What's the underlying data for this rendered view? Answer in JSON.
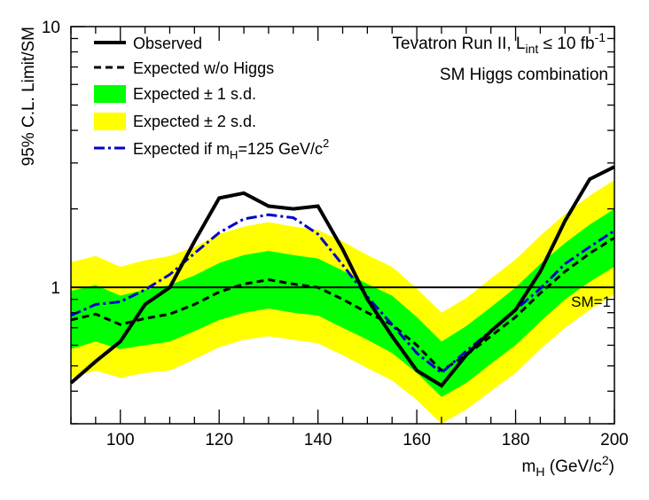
{
  "chart_data": {
    "type": "line",
    "annotation_line1": "Tevatron Run II, L",
    "annotation_line1_sub": "int",
    "annotation_line1_tail": " ≤ 10 fb",
    "annotation_line1_sup": "-1",
    "annotation_line2": "SM Higgs combination",
    "ylabel": "95% C.L. Limit/SM",
    "xlabel_main": "m",
    "xlabel_sub": "H",
    "xlabel_tail": " (GeV/c",
    "xlabel_sup": "2",
    "xlabel_end": ")",
    "xlim": [
      90,
      200
    ],
    "ylim": [
      0.3,
      10
    ],
    "yscale": "log",
    "x_ticks": [
      100,
      120,
      140,
      160,
      180,
      200
    ],
    "x_tick_labels": [
      "100",
      "120",
      "140",
      "160",
      "180",
      "200"
    ],
    "y_tick_labels": [
      {
        "value": 1,
        "label": "1"
      },
      {
        "value": 10,
        "label": "10"
      }
    ],
    "reference_line": {
      "value": 1,
      "label": "SM=1"
    },
    "legend": {
      "observed": "Observed",
      "expected": "Expected w/o Higgs",
      "band1": "Expected ± 1 s.d.",
      "band2": "Expected ± 2 s.d.",
      "exp125_main": "Expected if m",
      "exp125_sub": "H",
      "exp125_tail": "=125 GeV/c",
      "exp125_sup": "2"
    },
    "colors": {
      "observed": "#000000",
      "expected": "#000000",
      "band1": "#00ff00",
      "band2": "#ffff00",
      "exp125": "#0000cc"
    },
    "x": [
      90,
      95,
      100,
      105,
      110,
      115,
      120,
      125,
      130,
      135,
      140,
      145,
      150,
      155,
      160,
      165,
      170,
      175,
      180,
      185,
      190,
      195,
      200
    ],
    "series": [
      {
        "name": "Observed",
        "key": "observed",
        "values": [
          0.43,
          0.52,
          0.62,
          0.86,
          1.0,
          1.5,
          2.2,
          2.3,
          2.05,
          2.0,
          2.05,
          1.4,
          0.9,
          0.65,
          0.48,
          0.42,
          0.55,
          0.68,
          0.82,
          1.15,
          1.8,
          2.6,
          2.9
        ]
      },
      {
        "name": "Expected w/o Higgs",
        "key": "expected",
        "values": [
          0.75,
          0.79,
          0.72,
          0.76,
          0.79,
          0.86,
          0.96,
          1.03,
          1.07,
          1.03,
          1.0,
          0.9,
          0.8,
          0.72,
          0.6,
          0.48,
          0.55,
          0.65,
          0.77,
          0.95,
          1.15,
          1.35,
          1.55
        ]
      },
      {
        "name": "Expected if mH=125 GeV/c2",
        "key": "exp125",
        "values": [
          0.78,
          0.86,
          0.88,
          0.98,
          1.12,
          1.35,
          1.62,
          1.83,
          1.9,
          1.85,
          1.6,
          1.22,
          0.92,
          0.72,
          0.56,
          0.47,
          0.57,
          0.68,
          0.82,
          0.99,
          1.23,
          1.43,
          1.65
        ]
      }
    ],
    "band_1sd": {
      "lower": [
        0.58,
        0.62,
        0.58,
        0.6,
        0.62,
        0.68,
        0.75,
        0.8,
        0.83,
        0.8,
        0.78,
        0.7,
        0.63,
        0.56,
        0.47,
        0.38,
        0.43,
        0.51,
        0.6,
        0.74,
        0.9,
        1.05,
        1.2
      ],
      "upper": [
        0.97,
        1.02,
        0.93,
        0.98,
        1.02,
        1.11,
        1.24,
        1.33,
        1.38,
        1.33,
        1.29,
        1.16,
        1.03,
        0.93,
        0.77,
        0.62,
        0.71,
        0.84,
        1.0,
        1.23,
        1.48,
        1.74,
        2.0
      ]
    },
    "band_2sd": {
      "lower": [
        0.45,
        0.48,
        0.45,
        0.47,
        0.48,
        0.53,
        0.59,
        0.63,
        0.65,
        0.63,
        0.61,
        0.55,
        0.49,
        0.44,
        0.37,
        0.3,
        0.34,
        0.4,
        0.47,
        0.58,
        0.7,
        0.82,
        0.94
      ],
      "upper": [
        1.25,
        1.32,
        1.2,
        1.27,
        1.32,
        1.43,
        1.6,
        1.71,
        1.78,
        1.71,
        1.66,
        1.5,
        1.33,
        1.2,
        0.99,
        0.8,
        0.91,
        1.08,
        1.28,
        1.58,
        1.91,
        2.25,
        2.58
      ]
    },
    "grid": false,
    "legend_position": "top-left"
  }
}
